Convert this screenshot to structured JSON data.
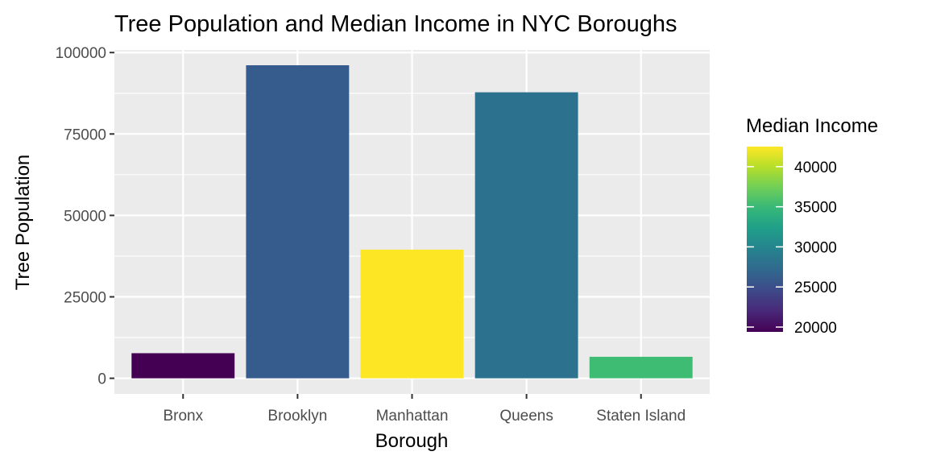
{
  "chart_data": {
    "type": "bar",
    "title": "Tree Population and Median Income in NYC Boroughs",
    "xlabel": "Borough",
    "ylabel": "Tree Population",
    "categories": [
      "Bronx",
      "Brooklyn",
      "Manhattan",
      "Queens",
      "Staten Island"
    ],
    "values": [
      7700,
      96100,
      39500,
      87800,
      6600
    ],
    "median_income": [
      19400,
      26400,
      42500,
      28200,
      34000
    ],
    "bar_colors": [
      "#440154",
      "#365c8d",
      "#fde725",
      "#2c718e",
      "#3fbc73"
    ],
    "ylim": [
      -4800,
      100800
    ],
    "yticks": [
      0,
      25000,
      50000,
      75000,
      100000
    ],
    "ytick_labels": [
      "0",
      "25000",
      "50000",
      "75000",
      "100000"
    ],
    "grid": true,
    "panel_background": "#ebebeb",
    "legend": {
      "title": "Median Income",
      "position": "right",
      "range": [
        19400,
        42500
      ],
      "ticks": [
        20000,
        25000,
        30000,
        35000,
        40000
      ],
      "tick_labels": [
        "20000",
        "25000",
        "30000",
        "35000",
        "40000"
      ],
      "colormap": "viridis"
    }
  }
}
